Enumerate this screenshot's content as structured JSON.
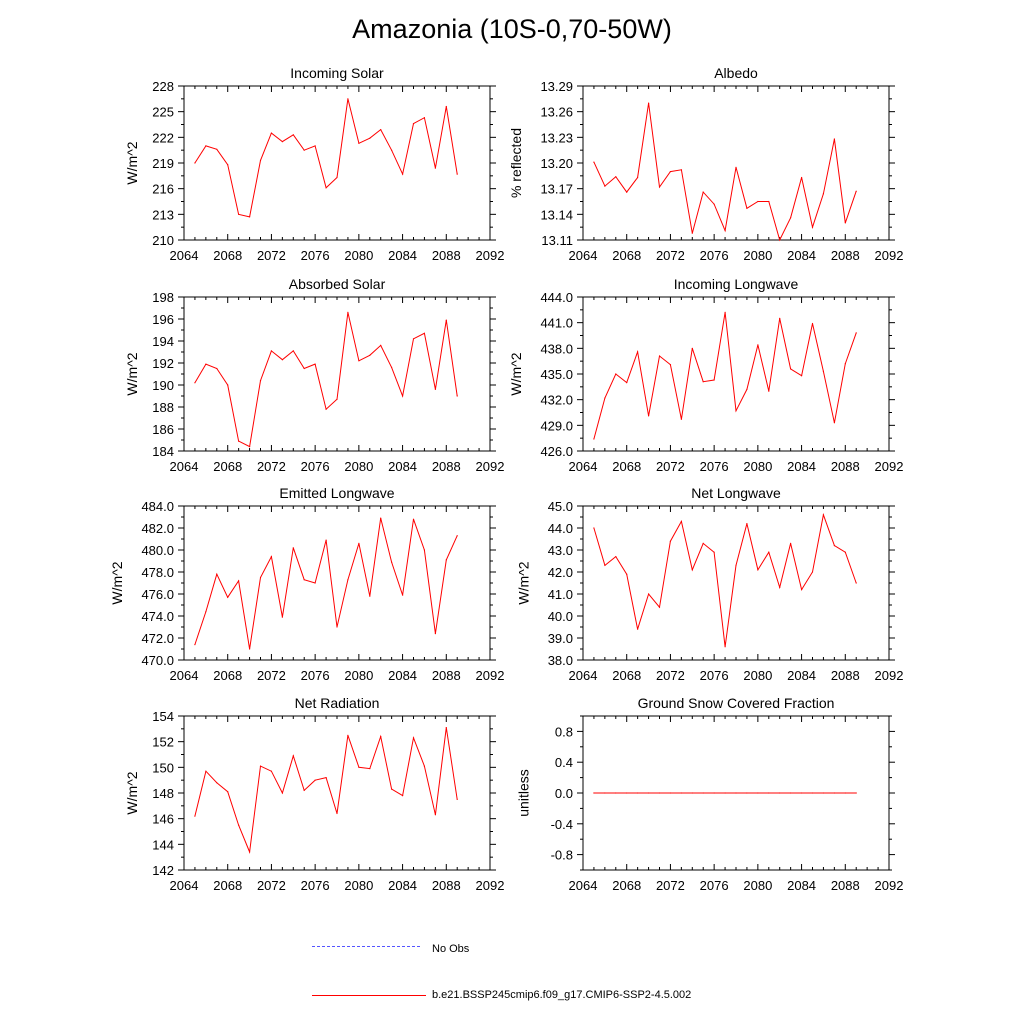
{
  "title": "Amazonia (10S-0,70-50W)",
  "colors": {
    "series": "#ff0000",
    "obs": "#5555ff",
    "axis": "#000000"
  },
  "legend": {
    "obs_label": "No Obs",
    "model_label": "b.e21.BSSP245cmip6.f09_g17.CMIP6-SSP2-4.5.002"
  },
  "chart_data": [
    {
      "type": "line",
      "title": "Incoming Solar",
      "ylabel": "W/m^2",
      "xlim": [
        2064,
        2092
      ],
      "ylim": [
        210,
        228
      ],
      "xticks": [
        2064,
        2068,
        2072,
        2076,
        2080,
        2084,
        2088,
        2092
      ],
      "yticks": [
        210,
        213,
        216,
        219,
        222,
        225,
        228
      ],
      "ytick_labels": [
        "210",
        "213",
        "216",
        "219",
        "222",
        "225",
        "228"
      ],
      "x": [
        2065,
        2066,
        2067,
        2068,
        2069,
        2070,
        2071,
        2072,
        2073,
        2074,
        2075,
        2076,
        2077,
        2078,
        2079,
        2080,
        2081,
        2082,
        2083,
        2084,
        2085,
        2086,
        2087,
        2088,
        2089
      ],
      "values": [
        219.0,
        221.0,
        220.6,
        218.8,
        213.0,
        212.7,
        219.3,
        222.5,
        221.5,
        222.3,
        220.5,
        221.0,
        216.1,
        217.3,
        226.5,
        221.3,
        221.9,
        222.9,
        220.5,
        217.7,
        223.6,
        224.3,
        218.4,
        225.6,
        217.7
      ]
    },
    {
      "type": "line",
      "title": "Albedo",
      "ylabel": "% reflected",
      "xlim": [
        2064,
        2092
      ],
      "ylim": [
        13.11,
        13.29
      ],
      "xticks": [
        2064,
        2068,
        2072,
        2076,
        2080,
        2084,
        2088,
        2092
      ],
      "yticks": [
        13.11,
        13.14,
        13.17,
        13.2,
        13.23,
        13.26,
        13.29
      ],
      "ytick_labels": [
        "13.11",
        "13.14",
        "13.17",
        "13.20",
        "13.23",
        "13.26",
        "13.29"
      ],
      "x": [
        2065,
        2066,
        2067,
        2068,
        2069,
        2070,
        2071,
        2072,
        2073,
        2074,
        2075,
        2076,
        2077,
        2078,
        2079,
        2080,
        2081,
        2082,
        2083,
        2084,
        2085,
        2086,
        2087,
        2088,
        2089
      ],
      "values": [
        13.201,
        13.173,
        13.184,
        13.166,
        13.183,
        13.27,
        13.172,
        13.19,
        13.192,
        13.118,
        13.166,
        13.152,
        13.121,
        13.195,
        13.147,
        13.155,
        13.155,
        13.11,
        13.136,
        13.183,
        13.125,
        13.164,
        13.228,
        13.13,
        13.167
      ]
    },
    {
      "type": "line",
      "title": "Absorbed Solar",
      "ylabel": "W/m^2",
      "xlim": [
        2064,
        2092
      ],
      "ylim": [
        184,
        198
      ],
      "xticks": [
        2064,
        2068,
        2072,
        2076,
        2080,
        2084,
        2088,
        2092
      ],
      "yticks": [
        184,
        186,
        188,
        190,
        192,
        194,
        196,
        198
      ],
      "ytick_labels": [
        "184",
        "186",
        "188",
        "190",
        "192",
        "194",
        "196",
        "198"
      ],
      "x": [
        2065,
        2066,
        2067,
        2068,
        2069,
        2070,
        2071,
        2072,
        2073,
        2074,
        2075,
        2076,
        2077,
        2078,
        2079,
        2080,
        2081,
        2082,
        2083,
        2084,
        2085,
        2086,
        2087,
        2088,
        2089
      ],
      "values": [
        190.2,
        191.9,
        191.5,
        190.0,
        184.9,
        184.4,
        190.4,
        193.1,
        192.3,
        193.1,
        191.5,
        191.9,
        187.8,
        188.7,
        196.6,
        192.2,
        192.7,
        193.6,
        191.6,
        189.0,
        194.2,
        194.7,
        189.6,
        195.9,
        189.0
      ]
    },
    {
      "type": "line",
      "title": "Incoming Longwave",
      "ylabel": "W/m^2",
      "xlim": [
        2064,
        2092
      ],
      "ylim": [
        426.0,
        444.0
      ],
      "xticks": [
        2064,
        2068,
        2072,
        2076,
        2080,
        2084,
        2088,
        2092
      ],
      "yticks": [
        426,
        429,
        432,
        435,
        438,
        441,
        444
      ],
      "ytick_labels": [
        "426.0",
        "429.0",
        "432.0",
        "435.0",
        "438.0",
        "441.0",
        "444.0"
      ],
      "x": [
        2065,
        2066,
        2067,
        2068,
        2069,
        2070,
        2071,
        2072,
        2073,
        2074,
        2075,
        2076,
        2077,
        2078,
        2079,
        2080,
        2081,
        2082,
        2083,
        2084,
        2085,
        2086,
        2087,
        2088,
        2089
      ],
      "values": [
        427.4,
        432.2,
        435.0,
        434.0,
        437.6,
        430.1,
        437.1,
        436.1,
        429.7,
        438.0,
        434.1,
        434.3,
        442.2,
        430.7,
        433.2,
        438.4,
        433.0,
        441.5,
        435.6,
        434.8,
        440.9,
        435.3,
        429.3,
        436.2,
        439.8
      ]
    },
    {
      "type": "line",
      "title": "Emitted Longwave",
      "ylabel": "W/m^2",
      "xlim": [
        2064,
        2092
      ],
      "ylim": [
        470.0,
        484.0
      ],
      "xticks": [
        2064,
        2068,
        2072,
        2076,
        2080,
        2084,
        2088,
        2092
      ],
      "yticks": [
        470,
        472,
        474,
        476,
        478,
        480,
        482,
        484
      ],
      "ytick_labels": [
        "470.0",
        "472.0",
        "474.0",
        "476.0",
        "478.0",
        "480.0",
        "482.0",
        "484.0"
      ],
      "x": [
        2065,
        2066,
        2067,
        2068,
        2069,
        2070,
        2071,
        2072,
        2073,
        2074,
        2075,
        2076,
        2077,
        2078,
        2079,
        2080,
        2081,
        2082,
        2083,
        2084,
        2085,
        2086,
        2087,
        2088,
        2089
      ],
      "values": [
        471.4,
        474.4,
        477.8,
        475.7,
        477.2,
        471.0,
        477.5,
        479.4,
        473.9,
        480.2,
        477.3,
        477.0,
        480.9,
        473.0,
        477.3,
        480.6,
        475.8,
        482.9,
        478.9,
        475.9,
        482.8,
        480.0,
        472.4,
        479.1,
        481.3
      ]
    },
    {
      "type": "line",
      "title": "Net Longwave",
      "ylabel": "W/m^2",
      "xlim": [
        2064,
        2092
      ],
      "ylim": [
        38.0,
        45.0
      ],
      "xticks": [
        2064,
        2068,
        2072,
        2076,
        2080,
        2084,
        2088,
        2092
      ],
      "yticks": [
        38,
        39,
        40,
        41,
        42,
        43,
        44,
        45
      ],
      "ytick_labels": [
        "38.0",
        "39.0",
        "40.0",
        "41.0",
        "42.0",
        "43.0",
        "44.0",
        "45.0"
      ],
      "x": [
        2065,
        2066,
        2067,
        2068,
        2069,
        2070,
        2071,
        2072,
        2073,
        2074,
        2075,
        2076,
        2077,
        2078,
        2079,
        2080,
        2081,
        2082,
        2083,
        2084,
        2085,
        2086,
        2087,
        2088,
        2089
      ],
      "values": [
        44.0,
        42.3,
        42.7,
        41.9,
        39.4,
        41.0,
        40.4,
        43.4,
        44.3,
        42.1,
        43.3,
        42.9,
        38.6,
        42.3,
        44.2,
        42.1,
        42.9,
        41.3,
        43.3,
        41.2,
        42.0,
        44.6,
        43.2,
        42.9,
        41.5
      ]
    },
    {
      "type": "line",
      "title": "Net Radiation",
      "ylabel": "W/m^2",
      "xlim": [
        2064,
        2092
      ],
      "ylim": [
        142,
        154
      ],
      "xticks": [
        2064,
        2068,
        2072,
        2076,
        2080,
        2084,
        2088,
        2092
      ],
      "yticks": [
        142,
        144,
        146,
        148,
        150,
        152,
        154
      ],
      "ytick_labels": [
        "142",
        "144",
        "146",
        "148",
        "150",
        "152",
        "154"
      ],
      "x": [
        2065,
        2066,
        2067,
        2068,
        2069,
        2070,
        2071,
        2072,
        2073,
        2074,
        2075,
        2076,
        2077,
        2078,
        2079,
        2080,
        2081,
        2082,
        2083,
        2084,
        2085,
        2086,
        2087,
        2088,
        2089
      ],
      "values": [
        146.2,
        149.7,
        148.8,
        148.1,
        145.5,
        143.4,
        150.1,
        149.7,
        148.0,
        150.9,
        148.2,
        149.0,
        149.2,
        146.4,
        152.5,
        150.0,
        149.9,
        152.4,
        148.3,
        147.8,
        152.3,
        150.1,
        146.3,
        153.1,
        147.5
      ]
    },
    {
      "type": "line",
      "title": "Ground Snow Covered Fraction",
      "ylabel": "unitless",
      "xlim": [
        2064,
        2092
      ],
      "ylim": [
        -1.0,
        1.0
      ],
      "xticks": [
        2064,
        2068,
        2072,
        2076,
        2080,
        2084,
        2088,
        2092
      ],
      "yticks": [
        -0.8,
        -0.4,
        0.0,
        0.4,
        0.8
      ],
      "ytick_labels": [
        "-0.8",
        "-0.4",
        "0.0",
        "0.4",
        "0.8"
      ],
      "x": [
        2065,
        2066,
        2067,
        2068,
        2069,
        2070,
        2071,
        2072,
        2073,
        2074,
        2075,
        2076,
        2077,
        2078,
        2079,
        2080,
        2081,
        2082,
        2083,
        2084,
        2085,
        2086,
        2087,
        2088,
        2089
      ],
      "values": [
        0,
        0,
        0,
        0,
        0,
        0,
        0,
        0,
        0,
        0,
        0,
        0,
        0,
        0,
        0,
        0,
        0,
        0,
        0,
        0,
        0,
        0,
        0,
        0,
        0
      ]
    }
  ]
}
